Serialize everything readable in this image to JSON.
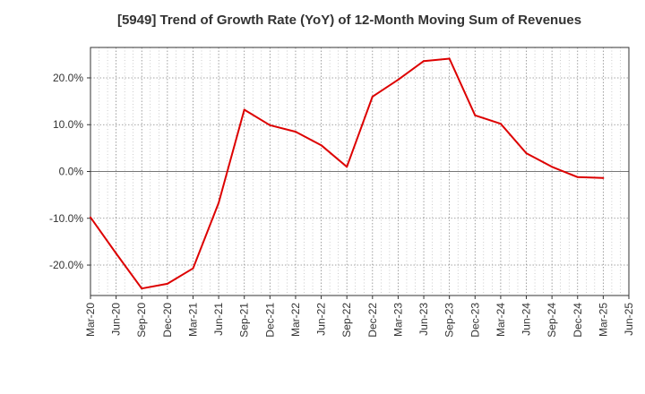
{
  "chart_data": {
    "type": "line",
    "title": "[5949]  Trend of Growth Rate (YoY) of 12-Month Moving Sum of Revenues",
    "xlabel": "",
    "ylabel": "",
    "x_tick_labels": [
      "Mar-20",
      "Jun-20",
      "Sep-20",
      "Dec-20",
      "Mar-21",
      "Jun-21",
      "Sep-21",
      "Dec-21",
      "Mar-22",
      "Jun-22",
      "Sep-22",
      "Dec-22",
      "Mar-23",
      "Jun-23",
      "Sep-23",
      "Dec-23",
      "Mar-24",
      "Jun-24",
      "Sep-24",
      "Dec-24",
      "Mar-25",
      "Jun-25"
    ],
    "y_ticks": [
      20,
      10,
      0,
      -10,
      -20
    ],
    "y_tick_labels": [
      "20.0%",
      "10.0%",
      "0.0%",
      "-10.0%",
      "-20.0%"
    ],
    "ylim": [
      -26.5,
      26.5
    ],
    "grid": true,
    "series": [
      {
        "name": "",
        "color": "#dd0000",
        "x": [
          "Mar-20",
          "Jun-20",
          "Sep-20",
          "Dec-20",
          "Mar-21",
          "Jun-21",
          "Sep-21",
          "Dec-21",
          "Mar-22",
          "Jun-22",
          "Sep-22",
          "Dec-22",
          "Mar-23",
          "Jun-23",
          "Sep-23",
          "Dec-23",
          "Mar-24",
          "Jun-24",
          "Sep-24",
          "Dec-24",
          "Mar-25"
        ],
        "values": [
          -9.8,
          -17.5,
          -25.0,
          -24.0,
          -20.7,
          -6.7,
          13.2,
          9.9,
          8.5,
          5.6,
          1.0,
          16.0,
          19.6,
          23.6,
          24.1,
          12.0,
          10.2,
          3.9,
          1.0,
          -1.2,
          -1.4
        ]
      }
    ]
  }
}
